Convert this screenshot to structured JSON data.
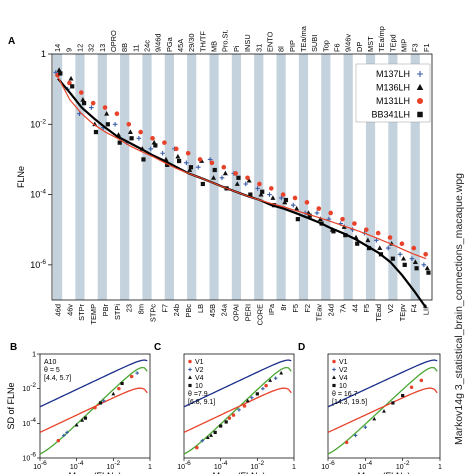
{
  "panel_labels": {
    "A": "A",
    "B": "B",
    "C": "C",
    "D": "D"
  },
  "side_caption": "Markov14g 3_statistical_brain_connections_macaque.wpg",
  "chart_data": [
    {
      "type": "scatter",
      "panel": "A",
      "ylabel": "FLNe",
      "y_scale": "log",
      "ylim": [
        1e-07,
        1
      ],
      "y_ticks": [
        {
          "value": 1,
          "label": "1"
        },
        {
          "value": 0.01,
          "label": "10^-2"
        },
        {
          "value": 0.0001,
          "label": "10^-4"
        },
        {
          "value": 1e-06,
          "label": "10^-6"
        }
      ],
      "top_labels": [
        "14",
        "9",
        "12",
        "32",
        "13",
        "OPRO",
        "8B",
        "11",
        "24c",
        "9/46d",
        "PGa",
        "45A",
        "29/30",
        "TH/TF",
        "MB",
        "Pro.St.",
        "Pi",
        "INSU",
        "31",
        "ENTO",
        "8l",
        "PIP",
        "TEa/ma",
        "SUBI",
        "Top",
        "F6",
        "9/46v",
        "DP",
        "MST",
        "TEa/mp",
        "TEpd",
        "MIP",
        "F3",
        "F1"
      ],
      "bottom_labels": [
        "46d",
        "46v",
        "STPr",
        "TEMP",
        "PBr",
        "STPi",
        "23",
        "8m",
        "STPc",
        "F7",
        "24b",
        "PBc",
        "LB",
        "45B",
        "24a",
        "OPAI",
        "PERI",
        "CORE",
        "IPa",
        "8r",
        "F5",
        "F2",
        "TEav",
        "24d",
        "7A",
        "44",
        "F5",
        "TEad",
        "V2",
        "TEpv",
        "F4",
        "LIP"
      ],
      "grid": false,
      "legend_position": "top-right",
      "legend": [
        {
          "name": "M137LH",
          "marker": "star",
          "color": "#3a5ea8"
        },
        {
          "name": "M136LH",
          "marker": "triangle",
          "color": "#111111"
        },
        {
          "name": "M131LH",
          "marker": "circle",
          "color": "#e8432a"
        },
        {
          "name": "BB341LH",
          "marker": "square",
          "color": "#111111"
        }
      ],
      "fit_lines": [
        {
          "color": "#000000",
          "y": [
            0.2,
            0.08,
            0.03,
            0.015,
            0.008,
            0.0045,
            0.003,
            0.002,
            0.0013,
            0.0009,
            0.0006,
            0.0004,
            0.0003,
            0.00022,
            0.00016,
            0.00012,
            9e-05,
            7e-05,
            5e-05,
            4e-05,
            3e-05,
            2.2e-05,
            1.6e-05,
            1.1e-05,
            8e-06,
            5.5e-06,
            3.5e-06,
            2.2e-06,
            1.2e-06,
            5e-07,
            1.8e-07,
            6e-08
          ]
        },
        {
          "color": "#e8432a",
          "y": [
            0.22,
            0.05,
            0.02,
            0.01,
            0.006,
            0.004,
            0.0025,
            0.0017,
            0.0012,
            0.0008,
            0.00055,
            0.0004,
            0.0003,
            0.00022,
            0.00016,
            0.00012,
            9e-05,
            7e-05,
            5.5e-05,
            4.5e-05,
            3.5e-05,
            2.8e-05,
            2.2e-05,
            1.7e-05,
            1.3e-05,
            1e-05,
            7.5e-06,
            5.5e-06,
            4e-06,
            2.8e-06,
            2e-06,
            1.5e-06
          ]
        }
      ],
      "series": [
        {
          "name": "M137LH",
          "y": [
            0.3,
            0.1,
            0.02,
            0.03,
            0.008,
            0.01,
            0.003,
            0.004,
            0.002,
            0.0015,
            0.002,
            0.0008,
            0.0006,
            0.001,
            0.0003,
            0.0004,
            0.0002,
            0.00015,
            0.0001,
            8e-05,
            5e-05,
            3e-05,
            3e-05,
            2e-05,
            1.5e-05,
            1e-05,
            8e-06,
            5e-06,
            3e-06,
            2e-06,
            1.5e-06,
            1e-06
          ]
        },
        {
          "name": "M136LH",
          "y": [
            0.35,
            0.2,
            0.05,
            0.01,
            0.02,
            0.005,
            0.006,
            0.002,
            0.003,
            0.001,
            0.0012,
            0.0005,
            0.0009,
            0.0003,
            0.0004,
            0.0002,
            0.00025,
            0.0001,
            8e-05,
            6e-05,
            4e-05,
            3e-05,
            2e-05,
            1e-05,
            1.2e-05,
            6e-06,
            5e-06,
            3e-06,
            4e-06,
            1.5e-06,
            1.2e-06,
            8e-07
          ]
        },
        {
          "name": "M131LH",
          "y": [
            0.25,
            0.15,
            0.08,
            0.04,
            0.03,
            0.02,
            0.01,
            0.006,
            0.004,
            0.003,
            0.002,
            0.0015,
            0.001,
            0.0008,
            0.0006,
            0.0004,
            0.0003,
            0.0002,
            0.00015,
            0.0001,
            8e-05,
            6e-05,
            4e-05,
            3e-05,
            2e-05,
            1.5e-05,
            1e-05,
            8e-06,
            6e-06,
            4e-06,
            3e-06,
            2e-06
          ]
        },
        {
          "name": "BB341LH",
          "y": [
            0.28,
            0.12,
            0.04,
            0.006,
            0.01,
            0.003,
            0.004,
            0.001,
            0.0025,
            0.0007,
            0.0009,
            0.0006,
            0.0002,
            0.0005,
            0.00015,
            0.0003,
            0.0001,
            0.00012,
            5e-05,
            7e-05,
            2e-05,
            2.5e-05,
            1.5e-05,
            9e-06,
            7e-06,
            4e-06,
            3e-06,
            2e-06,
            1.5e-06,
            1e-06,
            8e-07,
            6e-07
          ]
        }
      ]
    },
    {
      "type": "scatter",
      "panel": "B",
      "ylabel": "SD of FLNe",
      "xlabel": "Mean (FLNe)",
      "x_scale": "log",
      "y_scale": "log",
      "xlim": [
        1e-06,
        1
      ],
      "ylim": [
        1e-06,
        1
      ],
      "x_ticks": [
        {
          "value": 1e-06,
          "label": "10^-6"
        },
        {
          "value": 0.0001,
          "label": "10^-4"
        },
        {
          "value": 0.01,
          "label": "10^-2"
        },
        {
          "value": 1,
          "label": "1"
        }
      ],
      "y_ticks": [
        {
          "value": 1e-06,
          "label": "10^-6"
        },
        {
          "value": 0.0001,
          "label": "10^-4"
        },
        {
          "value": 0.01,
          "label": "10^-2"
        },
        {
          "value": 1,
          "label": "1"
        }
      ],
      "annotation": [
        "A10",
        "θ = 5",
        "[4.4, 5.7]"
      ],
      "legend": [],
      "points": {
        "x": [
          1e-05,
          3e-05,
          0.0001,
          0.0003,
          0.001,
          0.003,
          0.01,
          0.03,
          0.1,
          2e-05,
          0.0002,
          0.002,
          0.02,
          0.2
        ],
        "y": [
          1e-05,
          3e-05,
          8e-05,
          0.0002,
          0.0008,
          0.002,
          0.005,
          0.02,
          0.05,
          2e-05,
          0.00015,
          0.0015,
          0.01,
          0.08
        ]
      }
    },
    {
      "type": "scatter",
      "panel": "C",
      "xlabel": "Mean (FLNe)",
      "x_scale": "log",
      "y_scale": "log",
      "xlim": [
        1e-06,
        1
      ],
      "ylim": [
        1e-06,
        1
      ],
      "x_ticks": [
        {
          "value": 1e-06,
          "label": "10^-6"
        },
        {
          "value": 0.0001,
          "label": "10^-4"
        },
        {
          "value": 0.01,
          "label": "10^-2"
        },
        {
          "value": 1,
          "label": "1"
        }
      ],
      "annotation": [
        "θ =7.9",
        "[6.8, 9.1]"
      ],
      "legend": [
        {
          "name": "V1",
          "marker": "circle",
          "color": "#e8432a"
        },
        {
          "name": "V2",
          "marker": "star",
          "color": "#3a5ea8"
        },
        {
          "name": "V4",
          "marker": "triangle",
          "color": "#111111"
        },
        {
          "name": "10",
          "marker": "square",
          "color": "#111111"
        }
      ],
      "points": {
        "x": [
          5e-06,
          1e-05,
          3e-05,
          0.0001,
          0.0003,
          0.001,
          0.003,
          0.01,
          0.03,
          0.1,
          2e-05,
          0.0002,
          0.002,
          0.02,
          0.2,
          5e-05,
          0.0005,
          0.005,
          0.05
        ],
        "y": [
          4e-06,
          1e-05,
          2e-05,
          7e-05,
          0.0002,
          0.0006,
          0.002,
          0.005,
          0.015,
          0.04,
          1.5e-05,
          0.00012,
          0.001,
          0.01,
          0.08,
          3e-05,
          0.0003,
          0.003,
          0.03
        ]
      }
    },
    {
      "type": "scatter",
      "panel": "D",
      "xlabel": "Mean (FLNe)",
      "x_scale": "log",
      "y_scale": "log",
      "xlim": [
        1e-06,
        1
      ],
      "ylim": [
        1e-06,
        1
      ],
      "x_ticks": [
        {
          "value": 1e-06,
          "label": "10^-6"
        },
        {
          "value": 0.0001,
          "label": "10^-4"
        },
        {
          "value": 0.01,
          "label": "10^-2"
        },
        {
          "value": 1,
          "label": "1"
        }
      ],
      "annotation": [
        "θ = 16.7",
        "[14.3, 19.5]"
      ],
      "legend": [
        {
          "name": "V1",
          "marker": "circle",
          "color": "#e8432a"
        },
        {
          "name": "V2",
          "marker": "star",
          "color": "#3a5ea8"
        },
        {
          "name": "V4",
          "marker": "triangle",
          "color": "#111111"
        },
        {
          "name": "10",
          "marker": "square",
          "color": "#111111"
        }
      ],
      "points": {
        "x": [
          1e-05,
          0.0001,
          0.001,
          0.01,
          0.1,
          3e-05,
          0.0003,
          0.003,
          0.03
        ],
        "y": [
          8e-06,
          6e-05,
          0.0005,
          0.004,
          0.03,
          2e-05,
          0.00018,
          0.0015,
          0.012
        ]
      }
    }
  ]
}
